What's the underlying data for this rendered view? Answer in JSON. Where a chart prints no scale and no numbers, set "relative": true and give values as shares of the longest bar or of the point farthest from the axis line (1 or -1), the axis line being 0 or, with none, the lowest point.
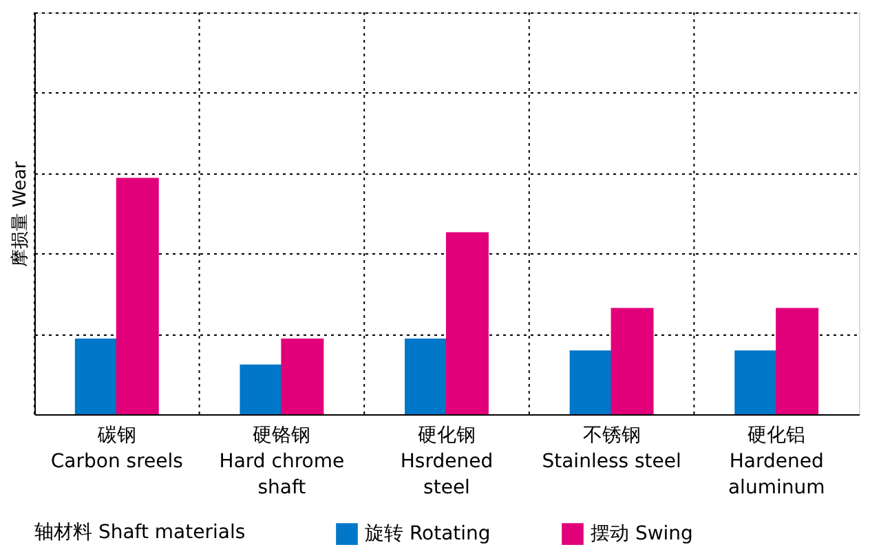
{
  "chart_data": {
    "type": "bar",
    "relative": true,
    "categories": [
      "碳钢\nCarbon sreels",
      "硬铬钢\nHard chrome\nshaft",
      "硬化钢\nHsrdened\nsteel",
      "不锈钢\nStainless steel",
      "硬化铝\nHardened\naluminum"
    ],
    "series": [
      {
        "name": "旋转 Rotating",
        "color": "#0077c8",
        "values": [
          0.32,
          0.21,
          0.32,
          0.27,
          0.27
        ]
      },
      {
        "name": "摆动 Swing",
        "color": "#e2007a",
        "values": [
          1,
          0.32,
          0.77,
          0.45,
          0.45
        ]
      }
    ],
    "ylabel": "摩损量 Wear",
    "legend_title": "轴材料  Shaft materials",
    "legend": "bottom",
    "grid": true
  }
}
